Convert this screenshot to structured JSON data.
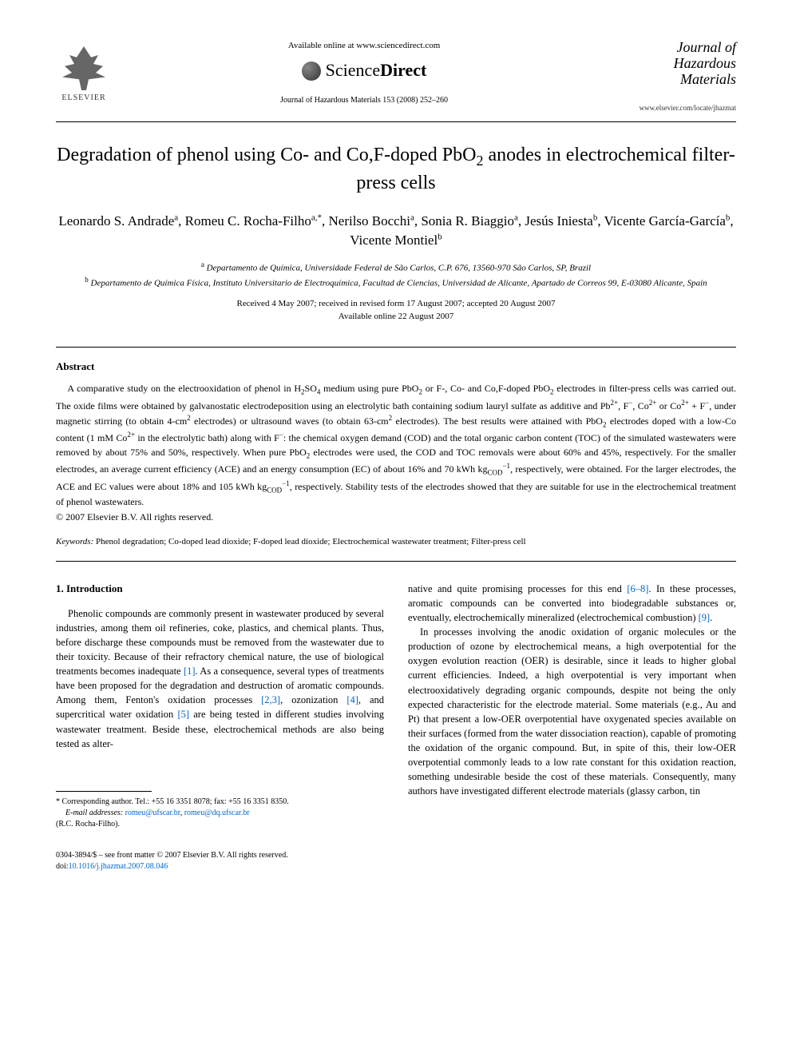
{
  "header": {
    "elsevier_label": "ELSEVIER",
    "available_online": "Available online at www.sciencedirect.com",
    "sciencedirect_prefix": "Science",
    "sciencedirect_suffix": "Direct",
    "journal_citation": "Journal of Hazardous Materials 153 (2008) 252–260",
    "journal_logo_line1": "Journal of",
    "journal_logo_line2": "Hazardous",
    "journal_logo_line3": "Materials",
    "journal_url": "www.elsevier.com/locate/jhazmat"
  },
  "article": {
    "title_html": "Degradation of phenol using Co- and Co,F-doped PbO<sub>2</sub> anodes in electrochemical filter-press cells",
    "authors_html": "Leonardo S. Andrade<sup>a</sup>, Romeu C. Rocha-Filho<sup>a,*</sup>, Nerilso Bocchi<sup>a</sup>, Sonia R. Biaggio<sup>a</sup>, Jesús Iniesta<sup>b</sup>, Vicente García-García<sup>b</sup>, Vicente Montiel<sup>b</sup>",
    "affiliation_a_html": "<sup>a</sup> Departamento de Química, Universidade Federal de São Carlos, C.P. 676, 13560-970 São Carlos, SP, Brazil",
    "affiliation_b_html": "<sup>b</sup> Departamento de Química Física, Instituto Universitario de Electroquímica, Facultad de Ciencias, Universidad de Alicante, Apartado de Correos 99, E-03080 Alicante, Spain",
    "dates_line1": "Received 4 May 2007; received in revised form 17 August 2007; accepted 20 August 2007",
    "dates_line2": "Available online 22 August 2007"
  },
  "abstract": {
    "heading": "Abstract",
    "text_html": "A comparative study on the electrooxidation of phenol in H<sub>2</sub>SO<sub>4</sub> medium using pure PbO<sub>2</sub> or F-, Co- and Co,F-doped PbO<sub>2</sub> electrodes in filter-press cells was carried out. The oxide films were obtained by galvanostatic electrodeposition using an electrolytic bath containing sodium lauryl sulfate as additive and Pb<sup>2+</sup>, F<sup>−</sup>, Co<sup>2+</sup> or Co<sup>2+</sup> + F<sup>−</sup>, under magnetic stirring (to obtain 4-cm<sup>2</sup> electrodes) or ultrasound waves (to obtain 63-cm<sup>2</sup> electrodes). The best results were attained with PbO<sub>2</sub> electrodes doped with a low-Co content (1 mM Co<sup>2+</sup> in the electrolytic bath) along with F<sup>−</sup>: the chemical oxygen demand (COD) and the total organic carbon content (TOC) of the simulated wastewaters were removed by about 75% and 50%, respectively. When pure PbO<sub>2</sub> electrodes were used, the COD and TOC removals were about 60% and 45%, respectively. For the smaller electrodes, an average current efficiency (ACE) and an energy consumption (EC) of about 16% and 70 kWh kg<sub>COD</sub><sup>−1</sup>, respectively, were obtained. For the larger electrodes, the ACE and EC values were about 18% and 105 kWh kg<sub>COD</sub><sup>−1</sup>, respectively. Stability tests of the electrodes showed that they are suitable for use in the electrochemical treatment of phenol wastewaters.",
    "copyright": "© 2007 Elsevier B.V. All rights reserved.",
    "keywords_label": "Keywords:",
    "keywords_text": " Phenol degradation; Co-doped lead dioxide; F-doped lead dioxide; Electrochemical wastewater treatment; Filter-press cell"
  },
  "body": {
    "section_heading": "1. Introduction",
    "col1_para_html": "Phenolic compounds are commonly present in wastewater produced by several industries, among them oil refineries, coke, plastics, and chemical plants. Thus, before discharge these compounds must be removed from the wastewater due to their toxicity. Because of their refractory chemical nature, the use of biological treatments becomes inadequate <span class=\"ref-link\">[1]</span>. As a consequence, several types of treatments have been proposed for the degradation and destruction of aromatic compounds. Among them, Fenton's oxidation processes <span class=\"ref-link\">[2,3]</span>, ozonization <span class=\"ref-link\">[4]</span>, and supercritical water oxidation <span class=\"ref-link\">[5]</span> are being tested in different studies involving wastewater treatment. Beside these, electrochemical methods are also being tested as alter-",
    "col2_para1_html": "native and quite promising processes for this end <span class=\"ref-link\">[6–8]</span>. In these processes, aromatic compounds can be converted into biodegradable substances or, eventually, electrochemically mineralized (electrochemical combustion) <span class=\"ref-link\">[9]</span>.",
    "col2_para2_html": "In processes involving the anodic oxidation of organic molecules or the production of ozone by electrochemical means, a high overpotential for the oxygen evolution reaction (OER) is desirable, since it leads to higher global current efficiencies. Indeed, a high overpotential is very important when electrooxidatively degrading organic compounds, despite not being the only expected characteristic for the electrode material. Some materials (e.g., Au and Pt) that present a low-OER overpotential have oxygenated species available on their surfaces (formed from the water dissociation reaction), capable of promoting the oxidation of the organic compound. But, in spite of this, their low-OER overpotential commonly leads to a low rate constant for this oxidation reaction, something undesirable beside the cost of these materials. Consequently, many authors have investigated different electrode materials (glassy carbon, tin"
  },
  "footnote": {
    "corresponding": "* Corresponding author. Tel.: +55 16 3351 8078; fax: +55 16 3351 8350.",
    "email_label": "E-mail addresses:",
    "email1": "romeu@ufscar.br",
    "email_sep": ", ",
    "email2": "romeu@dq.ufscar.br",
    "author_paren": "(R.C. Rocha-Filho)."
  },
  "footer": {
    "line1": "0304-3894/$ – see front matter © 2007 Elsevier B.V. All rights reserved.",
    "doi_prefix": "doi:",
    "doi": "10.1016/j.jhazmat.2007.08.046"
  },
  "colors": {
    "link": "#0066cc",
    "text": "#000000",
    "background": "#ffffff"
  }
}
